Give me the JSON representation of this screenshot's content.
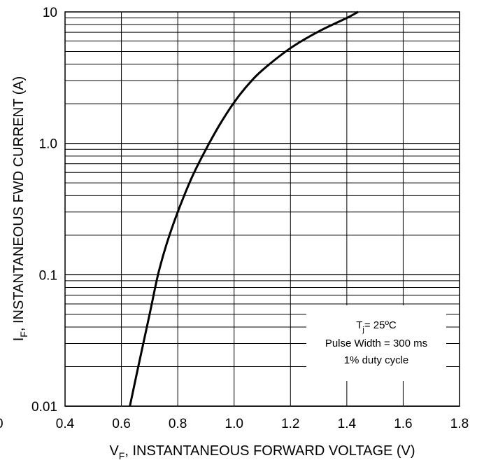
{
  "chart_data": {
    "type": "line",
    "x_scale": "linear",
    "y_scale": "log",
    "xlim": [
      0.4,
      1.8
    ],
    "ylim": [
      0.01,
      10
    ],
    "grid": true,
    "x_tick_labels": [
      "0.4",
      "0.6",
      "0.8",
      "1.0",
      "1.2",
      "1.4",
      "1.6",
      "1.8"
    ],
    "x_ticks": [
      0.4,
      0.6,
      0.8,
      1.0,
      1.2,
      1.4,
      1.6,
      1.8
    ],
    "y_tick_labels": [
      "0.01",
      "0.1",
      "1.0",
      "10"
    ],
    "y_ticks": [
      0.01,
      0.1,
      1.0,
      10
    ],
    "left_edge_label": "0",
    "xlabel": {
      "main": "V",
      "sub": "F",
      "rest": ",  INSTANTANEOUS FORWARD VOLTAGE (V)"
    },
    "ylabel": {
      "main": "I",
      "sub": "F",
      "rest": ", INSTANTANEOUS FWD CURRENT (A)"
    },
    "annotation": {
      "line1_main": "T",
      "line1_sub": "j",
      "line1_rest": "= 25ºC",
      "line2": "Pulse Width = 300 ms",
      "line3": "1% duty cycle"
    },
    "series": [
      {
        "x": [
          0.63,
          0.66,
          0.7,
          0.73,
          0.76,
          0.8,
          0.85,
          0.9,
          0.95,
          1.0,
          1.05,
          1.1,
          1.2,
          1.3,
          1.4,
          1.44
        ],
        "y": [
          0.01,
          0.02,
          0.05,
          0.1,
          0.17,
          0.3,
          0.55,
          0.9,
          1.4,
          2.05,
          2.8,
          3.6,
          5.3,
          7.1,
          9.0,
          10.0
        ]
      }
    ]
  }
}
